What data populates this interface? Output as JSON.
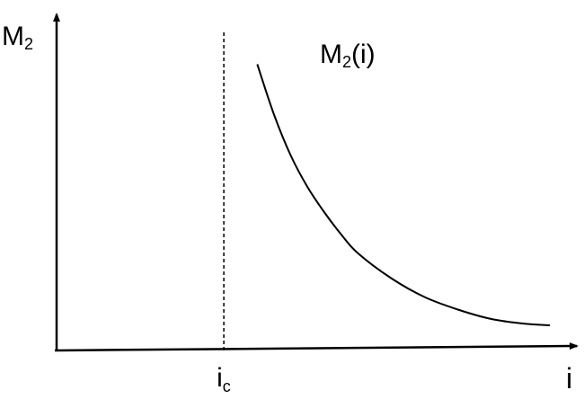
{
  "chart_data": {
    "type": "line",
    "title": "",
    "xlabel": "i",
    "ylabel": "M",
    "ylabel_subscript": "2",
    "x_ticks": [
      {
        "label": "i",
        "subscript": "c",
        "value": 1.0
      }
    ],
    "axes_arrows": true,
    "grid": false,
    "annotations": [
      {
        "text": "M",
        "subscript": "2",
        "suffix": "(i)",
        "near": "curve-top"
      }
    ],
    "reference_lines": [
      {
        "orientation": "vertical",
        "x": 1.0,
        "style": "dashed"
      }
    ],
    "xlim": [
      0,
      3.1
    ],
    "ylim": [
      0,
      1
    ],
    "series": [
      {
        "style": "solid",
        "color": "#000000",
        "x": [
          1.2,
          1.3,
          1.4,
          1.5,
          1.6,
          1.7,
          1.8,
          2.0,
          2.2,
          2.4,
          2.6,
          2.8,
          2.95
        ],
        "y": [
          0.91,
          0.75,
          0.62,
          0.52,
          0.44,
          0.37,
          0.31,
          0.23,
          0.17,
          0.13,
          0.1,
          0.085,
          0.08
        ]
      }
    ]
  }
}
